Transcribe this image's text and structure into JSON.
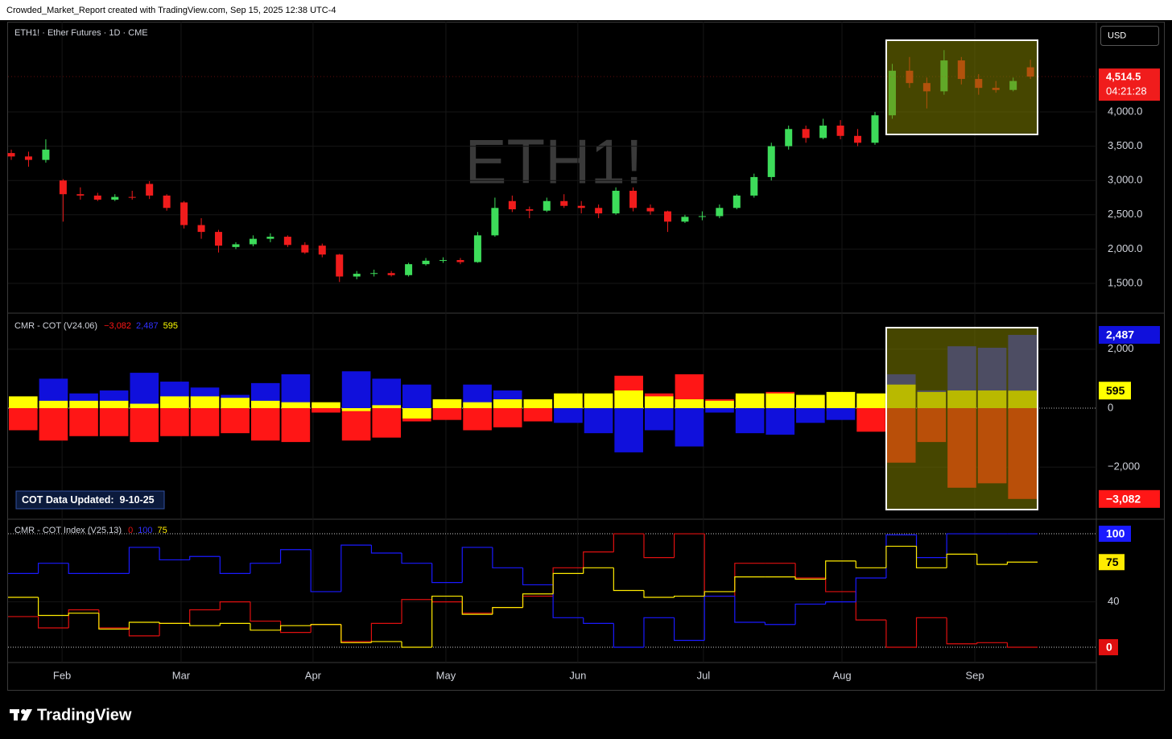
{
  "header": {
    "text": "Crowded_Market_Report created with TradingView.com, Sep 15, 2025 12:38 UTC-4"
  },
  "footer": {
    "brand": "TradingView"
  },
  "currency": "USD",
  "price_pane": {
    "type": "candlestick",
    "title": "ETH1! · Ether Futures · 1D · CME",
    "watermark": "ETH1!",
    "up_color": "#3ddc5a",
    "down_color": "#f01c1c",
    "open": [
      3400,
      3350,
      3300,
      3000,
      2800,
      2780,
      2720,
      2760,
      2950,
      2780,
      2680,
      2350,
      2250,
      2030,
      2070,
      2150,
      2180,
      2060,
      2050,
      1920,
      1600,
      1640,
      1650,
      1620,
      1780,
      1830,
      1840,
      1810,
      2200,
      2700,
      2580,
      2560,
      2700,
      2630,
      2600,
      2520,
      2850,
      2600,
      2550,
      2400,
      2470,
      2480,
      2600,
      2780,
      3050,
      3500,
      3750,
      3620,
      3800,
      3650,
      3550,
      3950,
      4600,
      4420,
      4300,
      4750,
      4480,
      4350,
      4320,
      4650
    ],
    "high": [
      3450,
      3420,
      3600,
      3020,
      2900,
      2820,
      2800,
      2850,
      2990,
      2800,
      2700,
      2450,
      2280,
      2100,
      2200,
      2230,
      2200,
      2100,
      2080,
      1930,
      1680,
      1700,
      1680,
      1800,
      1870,
      1880,
      1870,
      2250,
      2750,
      2780,
      2620,
      2750,
      2800,
      2700,
      2650,
      2900,
      2900,
      2650,
      2560,
      2500,
      2550,
      2650,
      2800,
      3100,
      3550,
      3800,
      3800,
      3900,
      3880,
      3750,
      4000,
      4700,
      4800,
      4500,
      4900,
      4800,
      4550,
      4450,
      4500,
      4760
    ],
    "low": [
      3300,
      3200,
      3260,
      2400,
      2720,
      2700,
      2700,
      2720,
      2730,
      2560,
      2300,
      2150,
      1950,
      2000,
      2040,
      2100,
      2030,
      1930,
      1880,
      1520,
      1560,
      1600,
      1600,
      1600,
      1760,
      1800,
      1780,
      1800,
      2180,
      2540,
      2450,
      2540,
      2600,
      2520,
      2450,
      2500,
      2550,
      2500,
      2250,
      2380,
      2420,
      2450,
      2580,
      2750,
      3000,
      3450,
      3550,
      3600,
      3600,
      3500,
      3520,
      3900,
      4350,
      4050,
      4250,
      4400,
      4250,
      4280,
      4300,
      4480
    ],
    "close": [
      3350,
      3300,
      3450,
      2800,
      2780,
      2720,
      2760,
      2750,
      2780,
      2600,
      2350,
      2250,
      2050,
      2070,
      2150,
      2180,
      2060,
      1950,
      1920,
      1600,
      1640,
      1650,
      1620,
      1780,
      1830,
      1840,
      1810,
      2200,
      2600,
      2580,
      2560,
      2700,
      2630,
      2600,
      2520,
      2850,
      2600,
      2550,
      2400,
      2470,
      2480,
      2600,
      2780,
      3050,
      3500,
      3750,
      3620,
      3800,
      3650,
      3550,
      3950,
      4600,
      4420,
      4300,
      4750,
      4480,
      4350,
      4320,
      4450,
      4514.5
    ],
    "last_price": {
      "value": 4514.5,
      "label": "4,514.5"
    },
    "countdown": "04:21:28",
    "ylim": [
      1066,
      5314
    ],
    "yticks": [
      {
        "value": 1500,
        "label": "1,500.0"
      },
      {
        "value": 2000,
        "label": "2,000.0"
      },
      {
        "value": 2500,
        "label": "2,500.0"
      },
      {
        "value": 3000,
        "label": "3,000.0"
      },
      {
        "value": 3500,
        "label": "3,500.0"
      },
      {
        "value": 4000,
        "label": "4,000.0"
      }
    ]
  },
  "cot_pane": {
    "type": "bar",
    "title": "CMR - COT (V24.06)",
    "note": "COT Data Updated:  9-10-25",
    "series": [
      {
        "color": "#ff1616",
        "last_label": "−3,082",
        "values": [
          -750,
          -1100,
          -950,
          -950,
          -1150,
          -950,
          -950,
          -850,
          -1100,
          -1150,
          -150,
          -1100,
          -1000,
          -450,
          -400,
          -750,
          -650,
          -450,
          300,
          400,
          1100,
          500,
          1150,
          300,
          400,
          550,
          300,
          -100,
          -800,
          -1850,
          -1150,
          -2700,
          -2550,
          -3082
        ]
      },
      {
        "color": "#1010dc",
        "last_label": "2,487",
        "values": [
          300,
          1000,
          500,
          600,
          1200,
          900,
          700,
          450,
          850,
          1150,
          100,
          1250,
          1000,
          800,
          100,
          800,
          600,
          200,
          -500,
          -850,
          -1500,
          -750,
          -1300,
          -150,
          -850,
          -900,
          -500,
          -400,
          300,
          1150,
          600,
          2100,
          2050,
          2487
        ]
      },
      {
        "color": "#ffff00",
        "values": [
          400,
          250,
          250,
          250,
          150,
          400,
          400,
          350,
          250,
          200,
          200,
          -100,
          100,
          -350,
          300,
          200,
          300,
          300,
          500,
          500,
          600,
          400,
          300,
          250,
          500,
          500,
          450,
          550,
          500,
          800,
          550,
          600,
          600,
          595
        ]
      }
    ],
    "ylim": [
      -3770,
      3224
    ],
    "yticks": [
      {
        "value": 2000,
        "label": "2,000"
      },
      0,
      {
        "value": -2000,
        "label": "−2,000"
      }
    ]
  },
  "index_pane": {
    "type": "step-line",
    "title": "CMR - COT Index (V25.13)",
    "series": [
      {
        "color": "#e01010",
        "values": [
          27,
          17,
          33,
          17,
          10,
          21,
          33,
          40,
          23,
          13,
          20,
          5,
          21,
          42,
          40,
          30,
          35,
          45,
          70,
          84,
          100,
          79,
          100,
          45,
          74,
          74,
          61,
          49,
          24,
          0,
          26,
          3,
          4,
          0
        ]
      },
      {
        "color": "#1a1aff",
        "values": [
          65,
          74,
          65,
          65,
          88,
          77,
          80,
          65,
          74,
          86,
          49,
          90,
          83,
          74,
          57,
          88,
          70,
          55,
          26,
          21,
          0,
          26,
          6,
          45,
          22,
          20,
          38,
          40,
          61,
          99,
          79,
          100,
          100,
          100
        ]
      },
      {
        "color": "#ffeb00",
        "values": [
          44,
          28,
          30,
          16,
          22,
          21,
          19,
          21,
          15,
          19,
          20,
          4,
          5,
          0,
          45,
          29,
          35,
          47,
          65,
          70,
          50,
          44,
          45,
          49,
          62,
          62,
          60,
          76,
          70,
          89,
          70,
          82,
          73,
          75
        ]
      }
    ],
    "levels": [
      100,
      0
    ],
    "ylim": [
      -13.5,
      112.8
    ],
    "yticks": [
      40
    ]
  },
  "x_axis": {
    "xticks": [
      {
        "value": 2.94,
        "label": "Feb"
      },
      {
        "value": 9.83,
        "label": "Mar"
      },
      {
        "value": 17.47,
        "label": "Apr"
      },
      {
        "value": 25.16,
        "label": "May"
      },
      {
        "value": 32.8,
        "label": "Jun"
      },
      {
        "value": 40.07,
        "label": "Jul"
      },
      {
        "value": 48.09,
        "label": "Aug"
      },
      {
        "value": 55.78,
        "label": "Sep"
      }
    ]
  }
}
